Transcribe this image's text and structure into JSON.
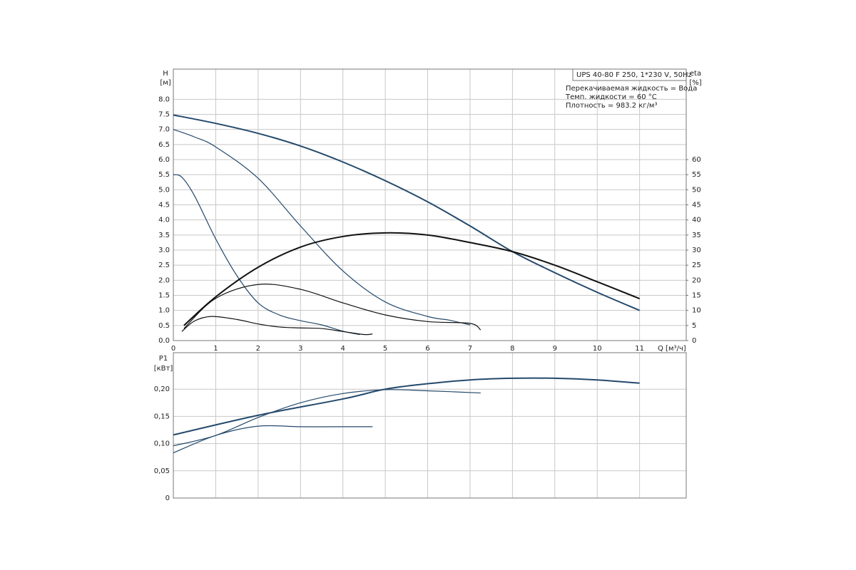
{
  "chart_data": [
    {
      "type": "line",
      "y_label": "H",
      "y_unit": "[м]",
      "y2_label": "eta",
      "y2_unit": "[%]",
      "x_label": "Q [м³/ч]",
      "annotation_box": "UPS 40-80 F 250, 1*230 V, 50Hz",
      "annotations": [
        "Перекачиваемая жидкость = Вода",
        "Темп. жидкости = 60 °C",
        "Плотность = 983.2 кг/м³"
      ],
      "xlim": [
        0,
        12.1
      ],
      "xticks": [
        0,
        1,
        2,
        3,
        4,
        5,
        6,
        7,
        8,
        9,
        10,
        11
      ],
      "ylim": [
        0,
        9.0
      ],
      "yticks": [
        {
          "value": 0,
          "label": "0.0"
        },
        0.5,
        {
          "value": 1,
          "label": "1.0"
        },
        1.5,
        {
          "value": 2,
          "label": "2.0"
        },
        2.5,
        {
          "value": 3,
          "label": "3.0"
        },
        3.5,
        {
          "value": 4,
          "label": "4.0"
        },
        4.5,
        {
          "value": 5,
          "label": "5.0"
        },
        5.5,
        {
          "value": 6,
          "label": "6.0"
        },
        6.5,
        {
          "value": 7,
          "label": "7.0"
        },
        7.5,
        {
          "value": 8,
          "label": "8.0"
        }
      ],
      "y2lim": [
        0,
        90
      ],
      "y2ticks": [
        0,
        5,
        10,
        15,
        20,
        25,
        30,
        35,
        40,
        45,
        50,
        55,
        60
      ],
      "grid": true,
      "series": [
        {
          "color": "#24496b",
          "width": 2,
          "x": [
            0,
            1,
            2,
            3,
            4,
            5,
            6,
            7,
            8,
            9,
            10,
            11
          ],
          "values": [
            7.48,
            7.2,
            6.87,
            6.45,
            5.92,
            5.3,
            4.6,
            3.8,
            2.95,
            2.25,
            1.6,
            1.0
          ]
        },
        {
          "color": "#24496b",
          "width": 1.2,
          "x": [
            0,
            0.5,
            1,
            2,
            3,
            4,
            5,
            6,
            6.5,
            7
          ],
          "values": [
            7.0,
            6.75,
            6.42,
            5.38,
            3.8,
            2.31,
            1.28,
            0.8,
            0.68,
            0.52
          ]
        },
        {
          "color": "#24496b",
          "width": 1.2,
          "x": [
            0,
            0.2,
            0.5,
            1,
            1.5,
            2,
            2.5,
            3,
            3.5,
            4,
            4.4
          ],
          "values": [
            5.5,
            5.42,
            4.8,
            3.37,
            2.15,
            1.25,
            0.85,
            0.66,
            0.52,
            0.31,
            0.2
          ]
        },
        {
          "color": "#111111",
          "width": 2,
          "axis": "y2",
          "x": [
            0.25,
            1,
            2,
            3,
            4,
            5,
            6,
            7,
            8,
            9,
            10,
            11
          ],
          "values": [
            5,
            14.5,
            24.3,
            31,
            34.5,
            35.7,
            35,
            32.5,
            29.5,
            25,
            19.5,
            13.9
          ]
        },
        {
          "color": "#111111",
          "width": 1.2,
          "axis": "y2",
          "x": [
            0.25,
            1,
            2,
            3,
            4,
            5,
            6,
            7,
            7.25
          ],
          "values": [
            4,
            14,
            18.6,
            17,
            12.5,
            8.5,
            6.3,
            5.7,
            3.5
          ]
        },
        {
          "color": "#111111",
          "width": 1.2,
          "axis": "y2",
          "x": [
            0.2,
            0.5,
            0.9,
            1.5,
            2,
            2.5,
            3,
            3.5,
            4,
            4.5,
            4.7
          ],
          "values": [
            3,
            6.5,
            8,
            7,
            5.5,
            4.5,
            4.2,
            4.0,
            3.0,
            2.0,
            2.2
          ]
        }
      ]
    },
    {
      "type": "line",
      "y_label": "P1",
      "y_unit": "[кВт]",
      "xlim": [
        0,
        12.1
      ],
      "ylim": [
        0,
        0.267
      ],
      "yticks": [
        0,
        {
          "value": 0.05,
          "label": "0,05"
        },
        {
          "value": 0.1,
          "label": "0,10"
        },
        {
          "value": 0.15,
          "label": "0,15"
        },
        {
          "value": 0.2,
          "label": "0,20"
        }
      ],
      "grid": true,
      "series": [
        {
          "color": "#24496b",
          "width": 2,
          "x": [
            0,
            2,
            4,
            5,
            6,
            7,
            8,
            9,
            10,
            11
          ],
          "values": [
            0.116,
            0.152,
            0.182,
            0.2,
            0.21,
            0.217,
            0.22,
            0.22,
            0.217,
            0.211
          ]
        },
        {
          "color": "#24496b",
          "width": 1.2,
          "x": [
            0,
            1,
            2,
            3,
            4,
            5,
            6,
            7.25
          ],
          "values": [
            0.096,
            0.115,
            0.148,
            0.175,
            0.192,
            0.199,
            0.197,
            0.193
          ]
        },
        {
          "color": "#24496b",
          "width": 1.2,
          "x": [
            0,
            1,
            2,
            3,
            4,
            4.7
          ],
          "values": [
            0.083,
            0.115,
            0.132,
            0.131,
            0.131,
            0.131
          ]
        }
      ]
    }
  ]
}
